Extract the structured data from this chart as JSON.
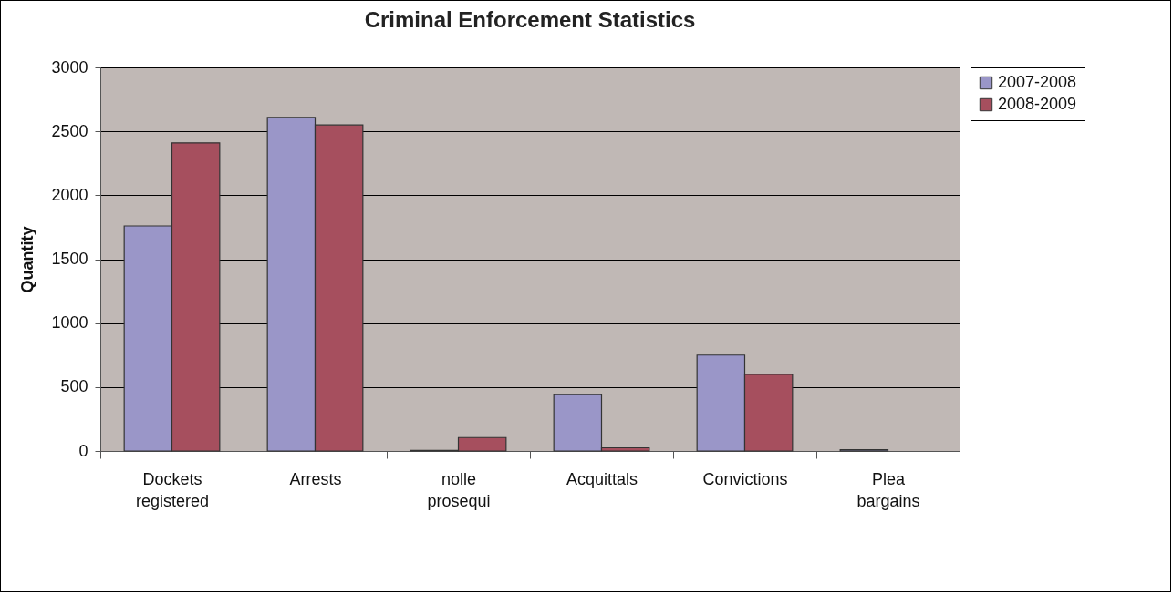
{
  "chart_data": {
    "type": "bar",
    "title": "Criminal Enforcement Statistics",
    "ylabel": "Quantity",
    "categories": [
      "Dockets registered",
      "Arrests",
      "nolle prosequi",
      "Acquittals",
      "Convictions",
      "Plea bargains"
    ],
    "series": [
      {
        "name": "2007-2008",
        "color": "#9a96c8",
        "values": [
          1760,
          2610,
          5,
          440,
          750,
          10
        ]
      },
      {
        "name": "2008-2009",
        "color": "#a64f5e",
        "values": [
          2410,
          2550,
          105,
          25,
          600,
          0
        ]
      }
    ],
    "ylim": [
      0,
      3000
    ],
    "yticks": [
      0,
      500,
      {
        "value": 1000,
        "label": "1000"
      },
      {
        "value": 1500,
        "label": "1500"
      },
      {
        "value": 2000,
        "label": "2000"
      },
      {
        "value": 2500,
        "label": "2500"
      },
      {
        "value": 3000,
        "label": "3000"
      }
    ],
    "grid": "y",
    "legend": "right"
  }
}
